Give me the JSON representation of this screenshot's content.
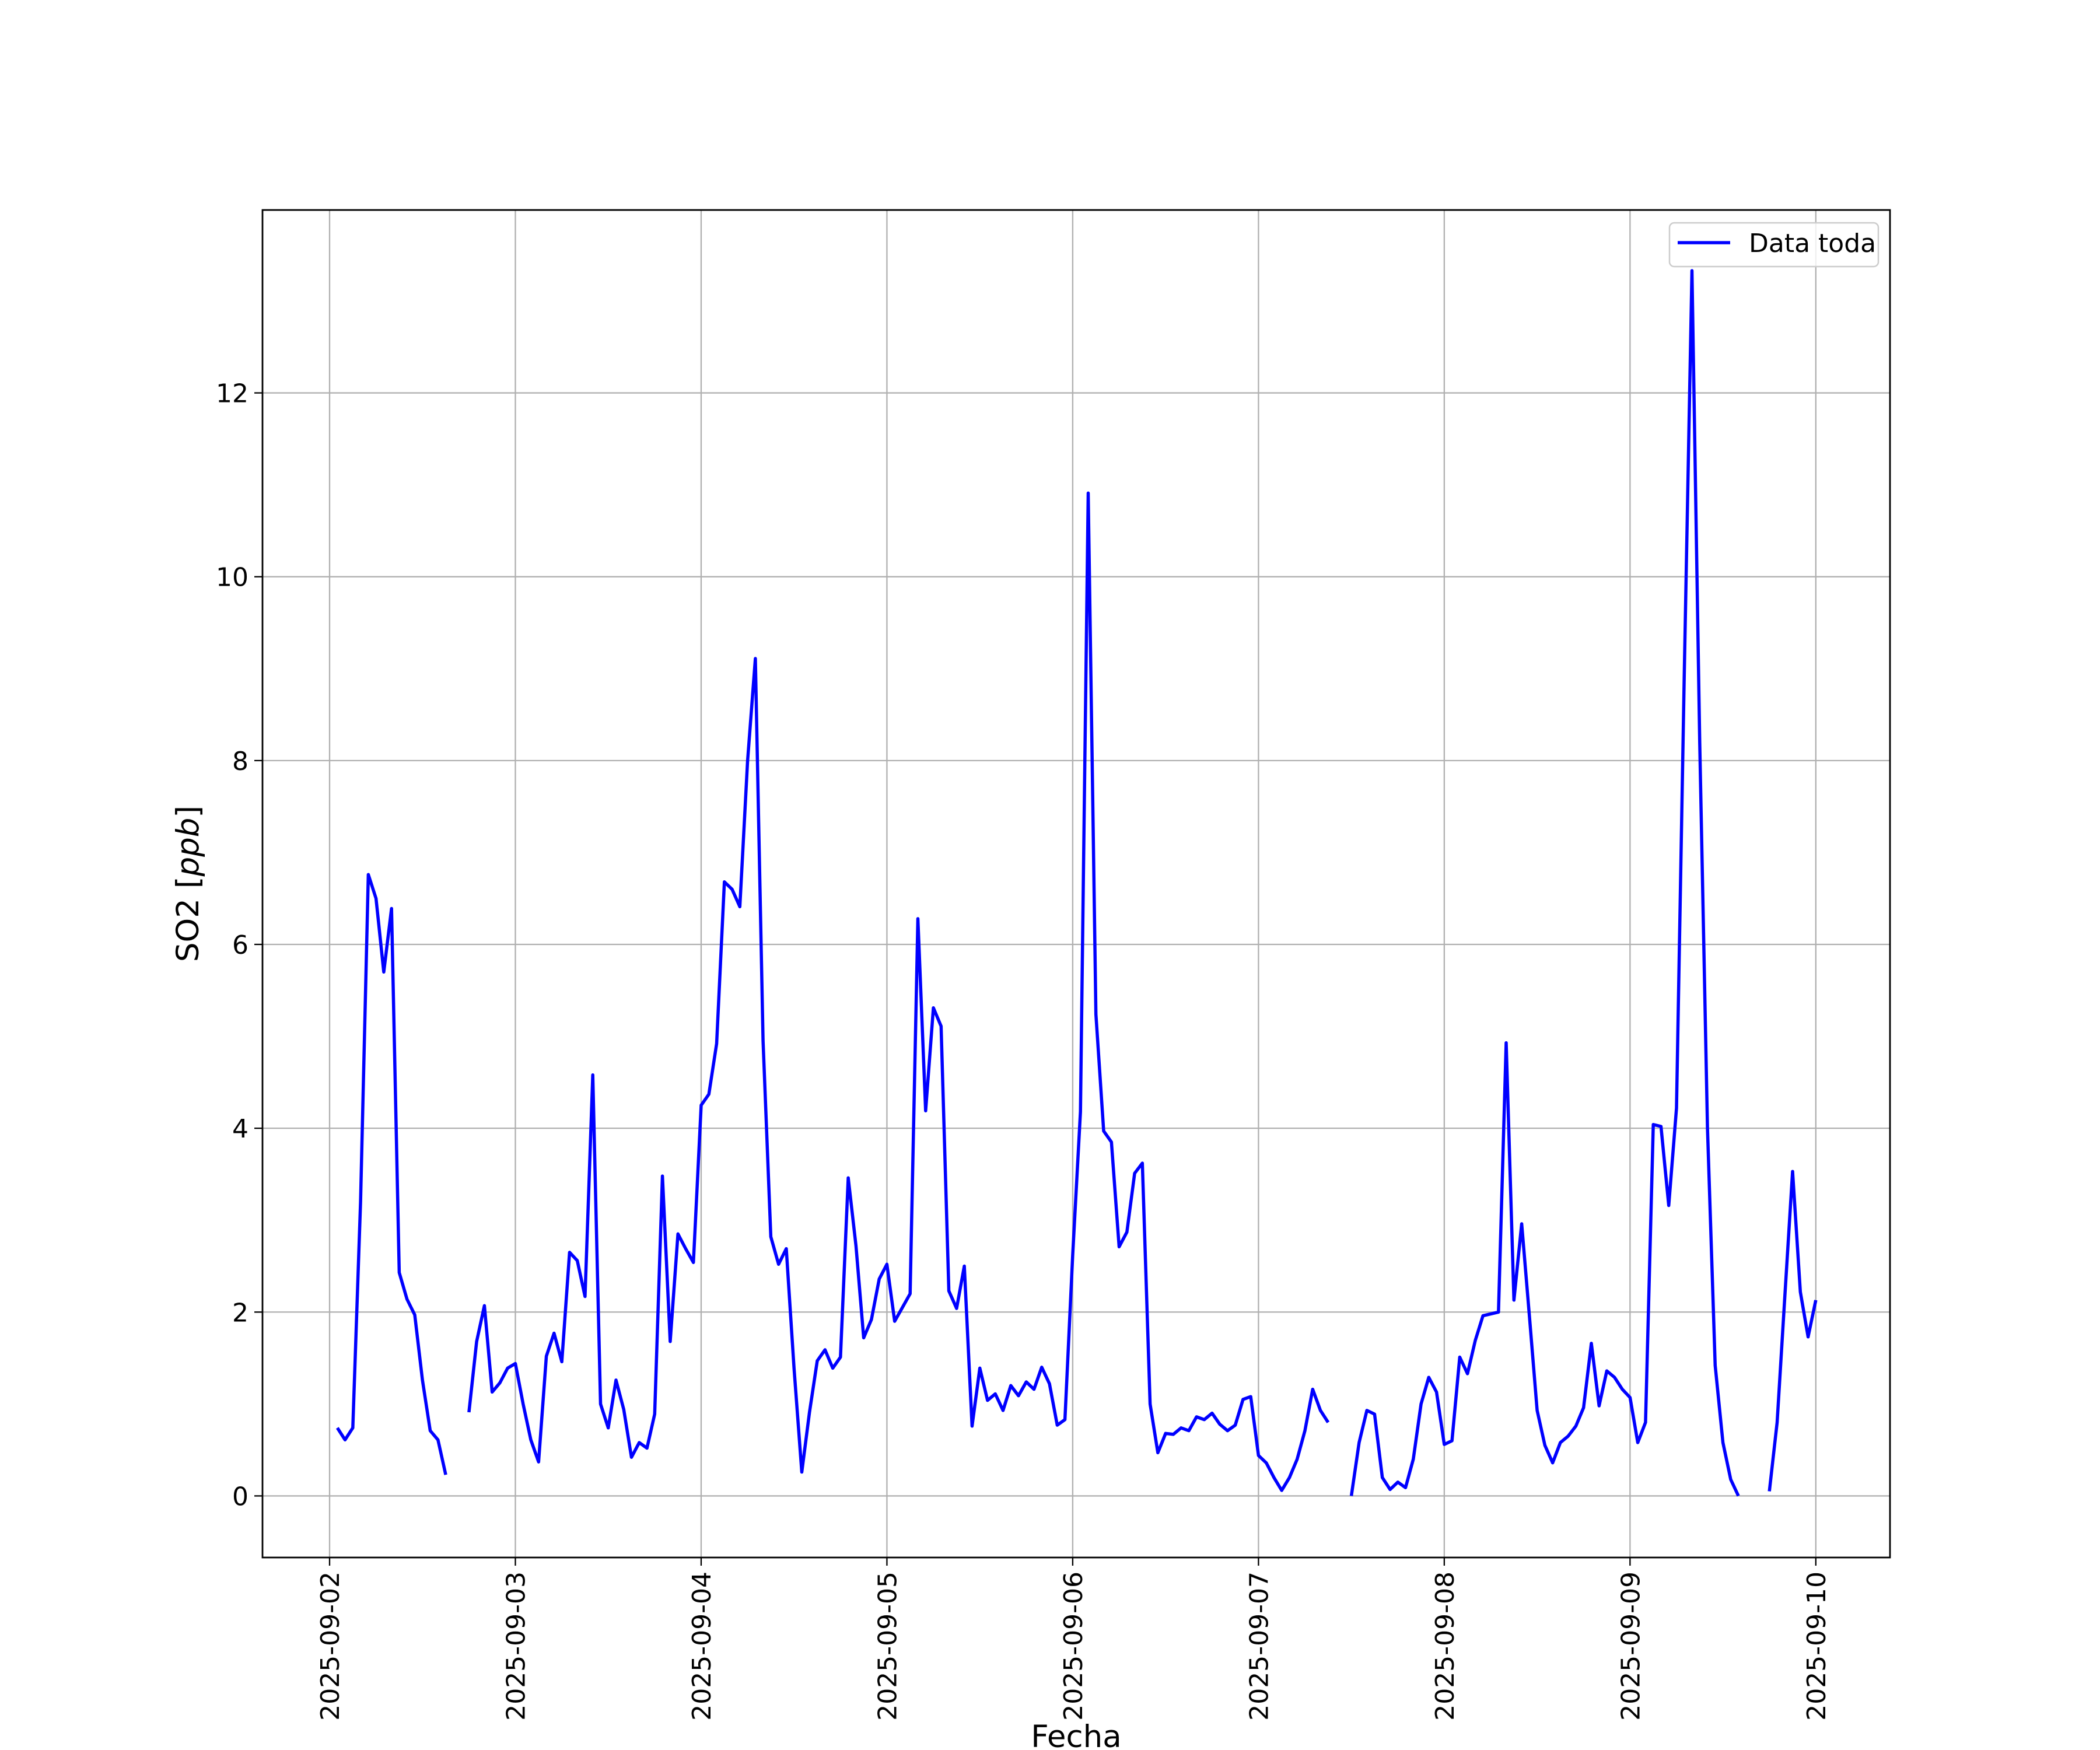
{
  "chart_data": {
    "type": "line",
    "title": "",
    "xlabel": "Fecha",
    "ylabel": "SO2 [ppb]",
    "ylabel_italic_part": "ppb",
    "xlim": [
      "2025-09-01 15:20",
      "2025-09-10 09:35"
    ],
    "ylim": [
      -0.67,
      13.99
    ],
    "grid": true,
    "legend_placement": "upper-right",
    "x_ticks": [
      "2025-09-02",
      "2025-09-03",
      "2025-09-04",
      "2025-09-05",
      "2025-09-06",
      "2025-09-07",
      "2025-09-08",
      "2025-09-09",
      "2025-09-10"
    ],
    "y_ticks": [
      0,
      2,
      4,
      6,
      8,
      10,
      12
    ],
    "y_tick_labels": [
      "0",
      "2",
      "4",
      "6",
      "8",
      "10",
      "12"
    ],
    "series": [
      {
        "name": "Data toda",
        "color": "#0000ff",
        "values_by_day_hour": {
          "2025-09-02": [
            null,
            0.74,
            0.61,
            0.74,
            3.2,
            6.76,
            6.5,
            5.7,
            6.39,
            2.43,
            2.14,
            1.97,
            1.26,
            0.71,
            0.61,
            0.23,
            null,
            null,
            0.91,
            1.68,
            2.07,
            1.13,
            1.23,
            1.39
          ],
          "2025-09-03": [
            1.44,
            1.0,
            0.61,
            0.37,
            1.52,
            1.77,
            1.46,
            2.65,
            2.56,
            2.17,
            4.58,
            1.0,
            0.74,
            1.26,
            0.94,
            0.42,
            0.58,
            0.52,
            0.89,
            3.48,
            1.68,
            2.85,
            2.69,
            2.54
          ],
          "2025-09-04": [
            4.25,
            4.37,
            4.92,
            6.68,
            6.6,
            6.41,
            8.0,
            9.11,
            4.95,
            2.82,
            2.52,
            2.69,
            1.39,
            0.26,
            0.91,
            1.47,
            1.59,
            1.39,
            1.51,
            3.46,
            2.72,
            1.72,
            1.92,
            2.36
          ],
          "2025-09-05": [
            2.52,
            1.9,
            2.05,
            2.2,
            6.28,
            4.19,
            5.31,
            5.11,
            2.23,
            2.04,
            2.5,
            0.76,
            1.39,
            1.04,
            1.11,
            0.93,
            1.2,
            1.09,
            1.24,
            1.16,
            1.4,
            1.22,
            0.77,
            0.83
          ],
          "2025-09-06": [
            2.62,
            4.18,
            10.91,
            5.24,
            3.97,
            3.85,
            2.71,
            2.87,
            3.51,
            3.62,
            1.0,
            0.47,
            0.68,
            0.67,
            0.74,
            0.71,
            0.86,
            0.83,
            0.9,
            0.78,
            0.71,
            0.77,
            1.05,
            1.08
          ],
          "2025-09-07": [
            0.44,
            0.36,
            0.2,
            0.06,
            0.2,
            0.4,
            0.71,
            1.16,
            0.93,
            0.8,
            null,
            null,
            0.0,
            0.58,
            0.93,
            0.89,
            0.2,
            0.07,
            0.15,
            0.09,
            0.4,
            1.0,
            1.29,
            1.13
          ],
          "2025-09-08": [
            0.56,
            0.6,
            1.51,
            1.33,
            1.69,
            1.96,
            1.98,
            2.0,
            4.93,
            2.13,
            2.96,
            1.96,
            0.93,
            0.55,
            0.36,
            0.58,
            0.65,
            0.76,
            0.96,
            1.66,
            0.98,
            1.36,
            1.29,
            1.16
          ],
          "2025-09-09": [
            1.07,
            0.58,
            0.8,
            4.04,
            4.02,
            3.16,
            4.22,
            8.9,
            13.33,
            8.2,
            4.0,
            1.42,
            0.58,
            0.18,
            0.0,
            null,
            null,
            null,
            0.05,
            0.8,
            2.18,
            3.53,
            2.22,
            1.73
          ],
          "2025-09-10": [
            2.13
          ]
        }
      }
    ]
  }
}
